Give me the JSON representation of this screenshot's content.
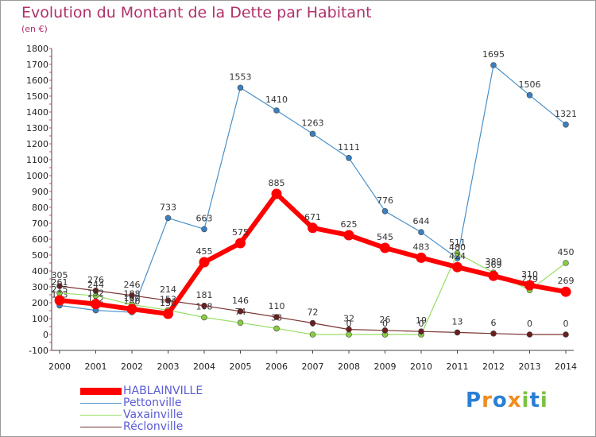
{
  "chart_data": {
    "type": "line",
    "title": "Evolution du Montant de la Dette par Habitant",
    "unit": "(en €)",
    "xlabel": "",
    "ylabel": "",
    "ylim": [
      -100,
      1800
    ],
    "yticks": [
      -100,
      0,
      100,
      200,
      300,
      400,
      500,
      600,
      700,
      800,
      900,
      1000,
      1100,
      1200,
      1300,
      1400,
      1500,
      1600,
      1700,
      1800
    ],
    "categories": [
      "2000",
      "2001",
      "2002",
      "2003",
      "2004",
      "2005",
      "2006",
      "2007",
      "2008",
      "2009",
      "2010",
      "2011",
      "2012",
      "2013",
      "2014"
    ],
    "grid": false,
    "legend_position": "bottom-left",
    "series": [
      {
        "name": "Pettonville",
        "color": "#4a90c8",
        "marker": "#3a7fc0",
        "width": 1.2,
        "radius": 3.5,
        "values": [
          183,
          152,
          140,
          733,
          663,
          1553,
          1410,
          1263,
          1111,
          776,
          644,
          480,
          1695,
          1506,
          1321
        ],
        "labels": [
          "183",
          "152",
          "140",
          "733",
          "663",
          "1553",
          "1410",
          "1263",
          "1111",
          "776",
          "644",
          "480",
          "1695",
          "1506",
          "1321"
        ]
      },
      {
        "name": "Vaxainville",
        "color": "#99dd66",
        "marker": "#88cc44",
        "width": 1.2,
        "radius": 3.5,
        "values": [
          261,
          244,
          188,
          153,
          108,
          74,
          38,
          0,
          0,
          0,
          0,
          511,
          389,
          279,
          450
        ],
        "labels": [
          "261",
          "244",
          "188",
          "153",
          "108",
          "74",
          "38",
          "0",
          "0",
          "0",
          "0",
          "511",
          "389",
          "279",
          "450"
        ]
      },
      {
        "name": "Réclonville",
        "color": "#7a3030",
        "marker": "#6a1f1f",
        "width": 1.2,
        "radius": 3.5,
        "values": [
          305,
          276,
          246,
          214,
          181,
          146,
          110,
          72,
          32,
          26,
          19,
          13,
          6,
          0,
          0
        ],
        "labels": [
          "305",
          "276",
          "246",
          "214",
          "181",
          "146",
          "110",
          "72",
          "32",
          "26",
          "19",
          "13",
          "6",
          "0",
          "0"
        ]
      },
      {
        "name": "HABLAINVILLE",
        "color": "#ff0000",
        "marker": "#ff0000",
        "width": 6,
        "radius": 6.5,
        "values": [
          215,
          192,
          160,
          130,
          455,
          575,
          885,
          671,
          625,
          545,
          483,
          424,
          369,
          310,
          269
        ],
        "labels": [
          "215",
          "192",
          "160",
          "130",
          "455",
          "575",
          "885",
          "671",
          "625",
          "545",
          "483",
          "424",
          "369",
          "310",
          "269"
        ]
      }
    ],
    "legend_order": [
      "HABLAINVILLE",
      "Pettonville",
      "Vaxainville",
      "Réclonville"
    ]
  },
  "branding": {
    "logo_text": "Proxiti"
  }
}
